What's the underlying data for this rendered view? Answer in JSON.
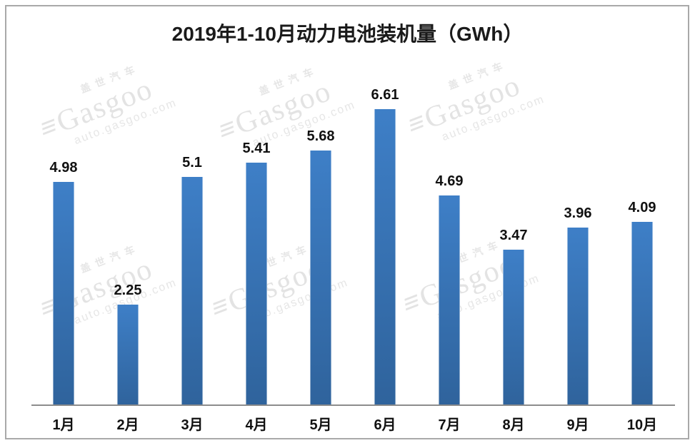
{
  "page": {
    "background": "#ffffff",
    "frame_border_color": "#a9a9a9"
  },
  "chart_data": {
    "type": "bar",
    "title": "2019年1-10月动力电池装机量（GWh）",
    "categories": [
      "1月",
      "2月",
      "3月",
      "4月",
      "5月",
      "6月",
      "7月",
      "8月",
      "9月",
      "10月"
    ],
    "values": [
      4.98,
      2.25,
      5.1,
      5.41,
      5.68,
      6.61,
      4.69,
      3.47,
      3.96,
      4.09
    ],
    "value_labels": [
      "4.98",
      "2.25",
      "5.1",
      "5.41",
      "5.68",
      "6.61",
      "4.69",
      "3.47",
      "3.96",
      "4.09"
    ],
    "xlabel": "",
    "ylabel": "",
    "grid": false,
    "legend": null,
    "y_axis_visible": false,
    "bar_color_top": "#3e7fc7",
    "bar_color_bottom": "#2f639c",
    "axis_line_color": "#8c8c8c",
    "label_text_color": "#111111",
    "title_text_color": "#1a1a1a"
  },
  "watermark": {
    "brand_cn": "盖世汽车",
    "brand_en": "Gasgoo",
    "url": "auto.gasgoo.com",
    "logo_glyph": "≡",
    "color": "#e6e6e6"
  }
}
